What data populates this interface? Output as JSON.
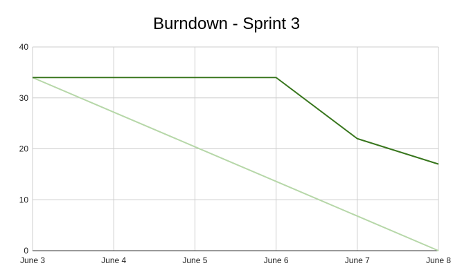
{
  "chart_data": {
    "type": "line",
    "title": "Burndown - Sprint 3",
    "xlabel": "",
    "ylabel": "",
    "categories": [
      "June 3",
      "June 4",
      "June 5",
      "June 6",
      "June 7",
      "June 8"
    ],
    "ylim": [
      0,
      40
    ],
    "yticks": [
      0,
      10,
      20,
      30,
      40
    ],
    "grid": true,
    "legend": "none",
    "series": [
      {
        "color": "#38761d",
        "values": [
          34,
          34,
          34,
          34,
          22,
          17
        ]
      },
      {
        "color": "#b6d7a8",
        "values": [
          34,
          27.2,
          20.4,
          13.6,
          6.8,
          0
        ]
      }
    ]
  }
}
